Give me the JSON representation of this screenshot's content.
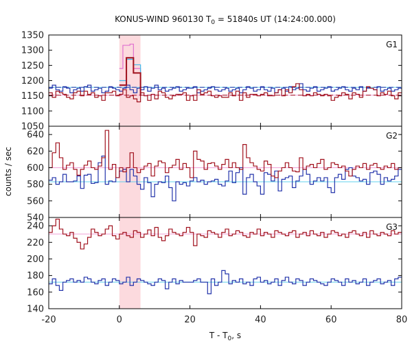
{
  "chart_data": {
    "type": "line",
    "title_parts": {
      "prefix": "KONUS-WIND 960130 T",
      "sub": "0",
      "suffix": " = 51840s UT (14:24:00.000)"
    },
    "xlabel_parts": {
      "prefix": "T - T",
      "sub": "0",
      "suffix": ", s"
    },
    "ylabel": "counts / sec",
    "xlim": [
      -20,
      80
    ],
    "xticks": [
      -20,
      0,
      20,
      40,
      60,
      80
    ],
    "highlight_interval": [
      0,
      6
    ],
    "colors": {
      "series_dark": "#a0101c",
      "series_blue": "#2233aa",
      "bg_pink": "#f1a0d8",
      "bg_cyan": "#60d0ec",
      "shade": "#fbd4d8",
      "fine_pink": "#e070d0",
      "fine_cyan": "#40b8e8"
    },
    "panels": [
      {
        "label": "G1",
        "ylim": [
          1050,
          1350
        ],
        "yticks": [
          1050,
          1100,
          1150,
          1200,
          1250,
          1300,
          1350
        ],
        "dark_series": [
          1160,
          1145,
          1165,
          1160,
          1155,
          1145,
          1140,
          1160,
          1165,
          1150,
          1165,
          1155,
          1160,
          1145,
          1150,
          1135,
          1160,
          1160,
          1165,
          1150,
          1155,
          1170,
          1145,
          1150,
          1140,
          1130,
          1160,
          1150,
          1135,
          1155,
          1140,
          1165,
          1160,
          1145,
          1140,
          1150,
          1155,
          1155,
          1160,
          1135,
          1150,
          1135,
          1170,
          1155,
          1160,
          1165,
          1150,
          1145,
          1150,
          1145,
          1145,
          1160,
          1150,
          1165,
          1135,
          1160,
          1145,
          1155,
          1155,
          1150,
          1155,
          1160,
          1150,
          1150,
          1160,
          1170,
          1150,
          1170,
          1160,
          1180,
          1190,
          1170,
          1150,
          1155,
          1150,
          1160,
          1155,
          1150,
          1155,
          1150,
          1135,
          1145,
          1150,
          1160,
          1155,
          1140,
          1160,
          1155,
          1145,
          1165,
          1180,
          1175,
          1170,
          1150,
          1160,
          1155,
          1165,
          1150,
          1140,
          1160
        ],
        "blue_series": [
          1175,
          1185,
          1170,
          1165,
          1180,
          1175,
          1160,
          1170,
          1175,
          1165,
          1180,
          1185,
          1165,
          1170,
          1175,
          1160,
          1165,
          1180,
          1175,
          1170,
          1165,
          1175,
          1185,
          1170,
          1160,
          1175,
          1170,
          1180,
          1165,
          1175,
          1185,
          1170,
          1175,
          1165,
          1170,
          1175,
          1180,
          1165,
          1170,
          1175,
          1175,
          1180,
          1160,
          1165,
          1170,
          1175,
          1180,
          1170,
          1165,
          1170,
          1175,
          1165,
          1170,
          1175,
          1160,
          1170,
          1180,
          1175,
          1165,
          1170,
          1180,
          1170,
          1165,
          1175,
          1160,
          1170,
          1175,
          1165,
          1180,
          1170,
          1175,
          1190,
          1170,
          1165,
          1175,
          1180,
          1165,
          1170,
          1175,
          1180,
          1165,
          1170,
          1175,
          1180,
          1170,
          1165,
          1175,
          1170,
          1180,
          1165,
          1175,
          1175,
          1170,
          1180,
          1165,
          1170,
          1175,
          1165,
          1170,
          1175
        ],
        "bg_dark": 1152,
        "bg_blue": 1178,
        "fine_series": [
          {
            "color": "fine_pink",
            "x": [
              0,
              1,
              3,
              4,
              6
            ],
            "y": [
              1240,
              1316,
              1320,
              1240,
              1175
            ]
          },
          {
            "color": "fine_cyan",
            "x": [
              0,
              2,
              4,
              6
            ],
            "y": [
              1200,
              1270,
              1252,
              1175
            ]
          },
          {
            "color": "fine_dark",
            "x": [
              0,
              2,
              4,
              6
            ],
            "y": [
              1185,
              1275,
              1225,
              1150
            ]
          }
        ]
      },
      {
        "label": "G2",
        "ylim": [
          540,
          650
        ],
        "yticks": [
          540,
          560,
          580,
          600,
          620,
          640
        ],
        "dark_series": [
          600,
          618,
          630,
          612,
          598,
          603,
          606,
          598,
          591,
          598,
          603,
          608,
          600,
          598,
          602,
          612,
          645,
          598,
          604,
          588,
          600,
          595,
          600,
          618,
          600,
          594,
          598,
          602,
          605,
          590,
          602,
          608,
          606,
          594,
          600,
          603,
          610,
          598,
          605,
          600,
          588,
          620,
          610,
          608,
          598,
          605,
          606,
          602,
          598,
          604,
          610,
          600,
          606,
          600,
          598,
          628,
          612,
          606,
          602,
          598,
          596,
          608,
          604,
          590,
          588,
          596,
          600,
          606,
          600,
          596,
          595,
          612,
          598,
          602,
          604,
          600,
          605,
          610,
          598,
          600,
          606,
          604,
          600,
          602,
          596,
          590,
          598,
          602,
          600,
          605,
          598,
          603,
          605,
          600,
          598,
          602,
          600,
          605,
          598,
          600
        ],
        "blue_series": [
          585,
          588,
          580,
          583,
          592,
          583,
          583,
          584,
          590,
          575,
          591,
          592,
          581,
          582,
          606,
          614,
          580,
          584,
          583,
          588,
          596,
          598,
          583,
          598,
          590,
          580,
          574,
          588,
          582,
          565,
          580,
          583,
          582,
          590,
          576,
          560,
          583,
          580,
          582,
          578,
          584,
          588,
          583,
          585,
          580,
          583,
          584,
          586,
          580,
          578,
          584,
          596,
          582,
          594,
          600,
          568,
          588,
          592,
          583,
          578,
          568,
          594,
          592,
          584,
          596,
          572,
          586,
          588,
          590,
          576,
          584,
          590,
          598,
          592,
          580,
          584,
          588,
          584,
          588,
          576,
          570,
          588,
          592,
          586,
          598,
          600,
          590,
          588,
          584,
          586,
          580,
          594,
          596,
          592,
          580,
          588,
          584,
          586,
          590,
          598
        ],
        "bg_dark": 600,
        "bg_blue": 583
      },
      {
        "label": "G3",
        "ylim": [
          140,
          250
        ],
        "yticks": [
          140,
          160,
          180,
          200,
          220,
          240
        ],
        "dark_series": [
          232,
          240,
          248,
          236,
          230,
          228,
          232,
          225,
          220,
          212,
          218,
          226,
          236,
          232,
          228,
          230,
          236,
          240,
          228,
          224,
          230,
          232,
          228,
          226,
          234,
          232,
          226,
          230,
          235,
          228,
          238,
          226,
          222,
          228,
          236,
          232,
          230,
          228,
          232,
          238,
          232,
          216,
          230,
          228,
          226,
          234,
          232,
          230,
          226,
          232,
          236,
          228,
          230,
          234,
          232,
          228,
          226,
          232,
          230,
          236,
          228,
          232,
          230,
          226,
          234,
          232,
          230,
          228,
          232,
          234,
          226,
          230,
          232,
          228,
          234,
          230,
          228,
          232,
          226,
          230,
          234,
          232,
          228,
          230,
          226,
          232,
          234,
          230,
          228,
          232,
          226,
          234,
          230,
          228,
          232,
          230,
          228,
          234,
          230,
          232
        ],
        "blue_series": [
          170,
          176,
          168,
          162,
          172,
          174,
          176,
          172,
          174,
          172,
          178,
          176,
          172,
          170,
          174,
          176,
          168,
          172,
          176,
          174,
          170,
          172,
          178,
          168,
          172,
          176,
          174,
          172,
          170,
          168,
          172,
          176,
          174,
          164,
          172,
          176,
          170,
          174,
          172,
          172,
          172,
          174,
          176,
          172,
          172,
          158,
          176,
          168,
          172,
          186,
          182,
          170,
          174,
          172,
          176,
          170,
          172,
          168,
          176,
          178,
          172,
          174,
          170,
          172,
          176,
          168,
          174,
          178,
          172,
          170,
          176,
          174,
          168,
          172,
          176,
          174,
          172,
          170,
          168,
          172,
          176,
          174,
          172,
          168,
          176,
          172,
          174,
          170,
          172,
          176,
          168,
          172,
          174,
          176,
          170,
          172,
          174,
          168,
          176,
          178
        ],
        "bg_dark": 230,
        "bg_blue": 172
      }
    ]
  }
}
